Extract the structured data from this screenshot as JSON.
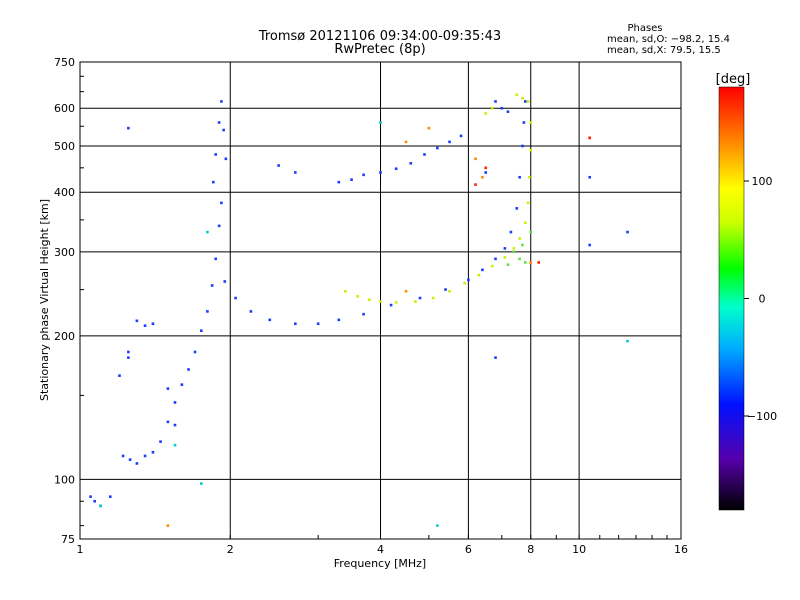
{
  "chart_data": {
    "type": "scatter",
    "title": "Tromsø 20121106 09:34:00-09:35:43",
    "subtitle": "RwPretec (8p)",
    "xlabel": "Frequency [MHz]",
    "ylabel": "Stationary phase Virtual Height [km]",
    "x_scale": "log2",
    "y_scale": "log",
    "xlim": [
      1,
      16
    ],
    "ylim": [
      75,
      750
    ],
    "x_ticks": [
      1,
      2,
      4,
      6,
      8,
      10,
      16
    ],
    "x_tick_labels": [
      "1",
      "2",
      "4",
      "6",
      "8",
      "10",
      "16"
    ],
    "y_ticks": [
      75,
      100,
      200,
      300,
      400,
      500,
      600,
      750
    ],
    "y_tick_labels": [
      "75",
      "100",
      "200",
      "300",
      "400",
      "500",
      "600",
      "750"
    ],
    "grid": true,
    "phases_box": {
      "title": "Phases",
      "line1": "mean, sd,O: −98.2, 15.4",
      "line2": "mean, sd,X:  79.5, 15.5"
    },
    "colorbar": {
      "label": "[deg]",
      "range": [
        -180,
        180
      ],
      "ticks": [
        100,
        0,
        -100
      ],
      "tick_labels": [
        "100",
        "0",
        "−100"
      ]
    },
    "series": [
      {
        "color": "#1a3cff",
        "points": [
          [
            1.05,
            92
          ],
          [
            1.07,
            90
          ],
          [
            1.1,
            88
          ],
          [
            1.15,
            92
          ],
          [
            1.22,
            112
          ],
          [
            1.26,
            110
          ],
          [
            1.3,
            108
          ],
          [
            1.35,
            112
          ],
          [
            1.4,
            114
          ],
          [
            1.45,
            120
          ],
          [
            1.5,
            132
          ],
          [
            1.55,
            145
          ],
          [
            1.6,
            158
          ],
          [
            1.65,
            170
          ],
          [
            1.7,
            185
          ],
          [
            1.75,
            205
          ],
          [
            1.8,
            225
          ],
          [
            1.84,
            255
          ],
          [
            1.87,
            290
          ],
          [
            1.9,
            340
          ],
          [
            1.92,
            380
          ],
          [
            1.85,
            420
          ],
          [
            1.87,
            480
          ],
          [
            1.9,
            560
          ],
          [
            1.92,
            620
          ],
          [
            1.94,
            540
          ],
          [
            1.96,
            470
          ],
          [
            1.3,
            215
          ],
          [
            1.35,
            210
          ],
          [
            1.4,
            212
          ],
          [
            1.25,
            180
          ],
          [
            1.2,
            165
          ],
          [
            1.25,
            185
          ],
          [
            1.5,
            155
          ],
          [
            1.55,
            130
          ],
          [
            1.95,
            260
          ],
          [
            2.05,
            240
          ],
          [
            2.2,
            225
          ],
          [
            2.4,
            216
          ],
          [
            2.7,
            212
          ],
          [
            3.0,
            212
          ],
          [
            3.3,
            216
          ],
          [
            3.7,
            222
          ],
          [
            4.2,
            232
          ],
          [
            4.8,
            240
          ],
          [
            5.4,
            250
          ],
          [
            6.0,
            262
          ],
          [
            6.4,
            275
          ],
          [
            6.8,
            290
          ],
          [
            7.1,
            305
          ],
          [
            7.3,
            330
          ],
          [
            7.5,
            370
          ],
          [
            7.6,
            430
          ],
          [
            7.7,
            500
          ],
          [
            7.75,
            560
          ],
          [
            7.8,
            620
          ],
          [
            6.8,
            620
          ],
          [
            7.0,
            600
          ],
          [
            7.2,
            590
          ],
          [
            3.3,
            420
          ],
          [
            3.5,
            425
          ],
          [
            3.7,
            435
          ],
          [
            4.0,
            440
          ],
          [
            4.3,
            448
          ],
          [
            4.6,
            460
          ],
          [
            4.9,
            480
          ],
          [
            5.2,
            495
          ],
          [
            5.5,
            510
          ],
          [
            5.8,
            525
          ],
          [
            1.25,
            545
          ],
          [
            10.5,
            310
          ],
          [
            12.5,
            330
          ],
          [
            2.5,
            455
          ],
          [
            2.7,
            440
          ],
          [
            6.5,
            440
          ],
          [
            6.8,
            180
          ],
          [
            10.5,
            430
          ]
        ]
      },
      {
        "color": "#ccee00",
        "points": [
          [
            3.4,
            248
          ],
          [
            3.6,
            242
          ],
          [
            3.8,
            238
          ],
          [
            4.0,
            236
          ],
          [
            4.3,
            235
          ],
          [
            4.7,
            236
          ],
          [
            5.1,
            240
          ],
          [
            5.5,
            248
          ],
          [
            5.9,
            258
          ],
          [
            6.3,
            268
          ],
          [
            6.7,
            280
          ],
          [
            7.1,
            292
          ],
          [
            7.4,
            305
          ],
          [
            7.6,
            320
          ],
          [
            7.8,
            345
          ],
          [
            7.9,
            380
          ],
          [
            7.95,
            430
          ],
          [
            8.0,
            490
          ],
          [
            8.0,
            560
          ],
          [
            7.9,
            620
          ],
          [
            7.7,
            630
          ],
          [
            7.5,
            640
          ],
          [
            6.5,
            585
          ],
          [
            6.7,
            600
          ]
        ]
      },
      {
        "color": "#66dd44",
        "points": [
          [
            7.4,
            300
          ],
          [
            7.6,
            290
          ],
          [
            7.8,
            285
          ],
          [
            7.2,
            282
          ],
          [
            7.7,
            310
          ],
          [
            8.0,
            330
          ]
        ]
      },
      {
        "color": "#ff8800",
        "points": [
          [
            4.5,
            248
          ],
          [
            5.0,
            545
          ],
          [
            6.2,
            470
          ],
          [
            6.4,
            430
          ],
          [
            8.0,
            285
          ],
          [
            10.5,
            520
          ],
          [
            1.5,
            80
          ],
          [
            4.5,
            510
          ]
        ]
      },
      {
        "color": "#00cccc",
        "points": [
          [
            4.0,
            560
          ],
          [
            1.8,
            330
          ],
          [
            1.55,
            118
          ],
          [
            1.75,
            98
          ],
          [
            5.2,
            80
          ],
          [
            12.5,
            195
          ],
          [
            1.1,
            88
          ]
        ]
      },
      {
        "color": "#ff2200",
        "points": [
          [
            6.5,
            450
          ],
          [
            6.2,
            415
          ],
          [
            10.5,
            520
          ],
          [
            8.3,
            285
          ]
        ]
      }
    ]
  }
}
